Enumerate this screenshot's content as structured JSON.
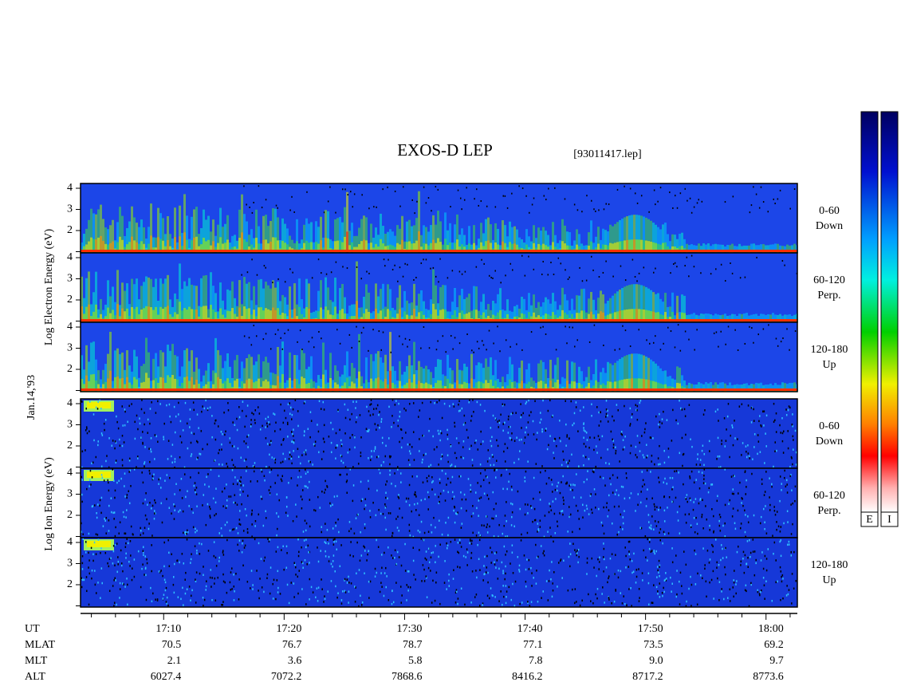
{
  "title": "EXOS-D LEP",
  "file": "[93011417.lep]",
  "y_axis_electron": "Log Electron Energy (eV)",
  "y_axis_ion": "Log Ion Energy (eV)",
  "date": "Jan.14,'93",
  "panels": [
    {
      "range": "0-60",
      "direction": "Down"
    },
    {
      "range": "60-120",
      "direction": "Perp."
    },
    {
      "range": "120-180",
      "direction": "Up"
    },
    {
      "range": "0-60",
      "direction": "Down"
    },
    {
      "range": "60-120",
      "direction": "Perp."
    },
    {
      "range": "120-180",
      "direction": "Up"
    }
  ],
  "ylim": [
    0.943,
    4.226
  ],
  "yticks": [
    2,
    3,
    4
  ],
  "minor_yticks": [
    1
  ],
  "xlim": [
    3.1,
    62.6
  ],
  "xticks": [
    {
      "value": 10,
      "label": "17:10"
    },
    {
      "value": 20,
      "label": "17:20"
    },
    {
      "value": 30,
      "label": "17:30"
    },
    {
      "value": 40,
      "label": "17:40"
    },
    {
      "value": 50,
      "label": "17:50"
    },
    {
      "value": 60,
      "label": "18:00"
    }
  ],
  "minor_xticks": [
    4,
    6,
    8,
    12,
    14,
    16,
    18,
    22,
    24,
    26,
    28,
    32,
    34,
    36,
    38,
    42,
    44,
    46,
    48,
    52,
    54,
    56,
    58,
    62
  ],
  "ephemeris": {
    "ut": "UT",
    "rows": [
      {
        "name": "MLAT",
        "values": [
          "70.5",
          "76.7",
          "78.7",
          "77.1",
          "73.5",
          "69.2"
        ]
      },
      {
        "name": "MLT",
        "values": [
          "2.1",
          "3.6",
          "5.8",
          "7.8",
          "9.0",
          "9.7"
        ]
      },
      {
        "name": "ALT",
        "values": [
          "6027.4",
          "7072.2",
          "7868.6",
          "8416.2",
          "8717.2",
          "8773.6"
        ]
      }
    ]
  },
  "colorbars": [
    "E",
    "I"
  ]
}
